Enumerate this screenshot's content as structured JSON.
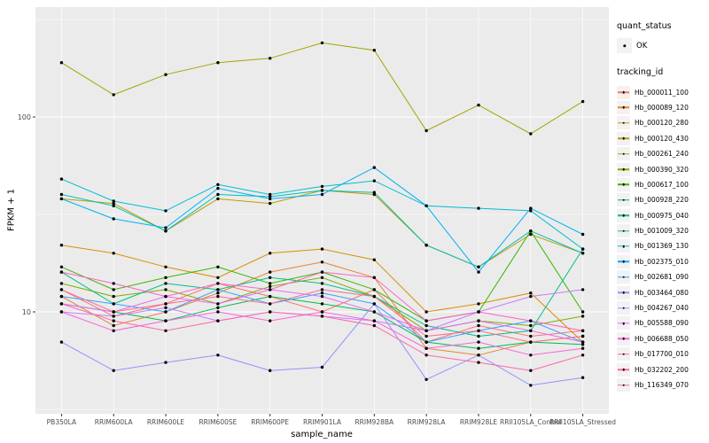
{
  "figure": {
    "background": "#FFFFFF",
    "panel_background": "#EBEBEB",
    "grid_color": "#FFFFFF",
    "tick_color": "#333333",
    "tick_label_color": "#4D4D4D",
    "point_color": "#000000"
  },
  "axes": {
    "x_title": "sample_name",
    "y_title": "FPKM + 1",
    "y_tick_labels": [
      "100",
      "10"
    ],
    "y_tick_values": [
      100,
      10
    ],
    "y_minor_values": [
      3.1623,
      31.623,
      316.23
    ]
  },
  "legend": {
    "quant_status": {
      "title": "quant_status",
      "items": [
        {
          "label": "OK",
          "symbol": "black-point"
        }
      ]
    },
    "tracking_id": {
      "title": "tracking_id"
    }
  },
  "chart_data": {
    "type": "line",
    "title": "",
    "xlabel": "sample_name",
    "ylabel": "FPKM + 1",
    "log_y": true,
    "ylim": [
      3,
      366
    ],
    "y_ticks": [
      10,
      100
    ],
    "grid": true,
    "legend_position": "right",
    "point_marker": "black-dot",
    "categories": [
      "PB350LA",
      "RRIM600LA",
      "RRIM600LE",
      "RRIM600SE",
      "RRIM600PE",
      "RRIM901LA",
      "RRIM928BA",
      "RRIM928LA",
      "RRIM928LE",
      "RRII105LA_Control",
      "RRII105LA_Stressed"
    ],
    "series": [
      {
        "name": "Hb_000011_100",
        "color": "#F8766D",
        "values": [
          13,
          9.5,
          11,
          14,
          12,
          10,
          13,
          7,
          8.5,
          7.5,
          8
        ]
      },
      {
        "name": "Hb_000089_120",
        "color": "#EA8331",
        "values": [
          12,
          8.5,
          10,
          12.5,
          16,
          18,
          15,
          6.5,
          6,
          7,
          7.5
        ]
      },
      {
        "name": "Hb_000120_280",
        "color": "#D89000",
        "values": [
          22,
          20,
          17,
          15,
          20,
          21,
          18.5,
          10,
          11,
          12.5,
          7
        ]
      },
      {
        "name": "Hb_000120_430",
        "color": "#C09B00",
        "values": [
          38,
          36,
          26,
          38,
          36,
          42,
          40,
          22,
          17,
          25,
          20
        ]
      },
      {
        "name": "Hb_000261_240",
        "color": "#A3A500",
        "values": [
          190,
          130,
          165,
          190,
          200,
          240,
          220,
          85,
          115,
          82,
          120
        ]
      },
      {
        "name": "Hb_000390_320",
        "color": "#7CAE00",
        "values": [
          14,
          12,
          13,
          11,
          13.5,
          15,
          12,
          8,
          9,
          8.5,
          9.5
        ]
      },
      {
        "name": "Hb_000617_100",
        "color": "#39B600",
        "values": [
          17,
          13,
          15,
          17,
          14,
          16,
          13,
          9,
          10,
          26,
          10
        ]
      },
      {
        "name": "Hb_000928_220",
        "color": "#00BB4E",
        "values": [
          11,
          10,
          9,
          10.5,
          12,
          11,
          10,
          7,
          6.5,
          7,
          6.8
        ]
      },
      {
        "name": "Hb_000975_040",
        "color": "#00C087",
        "values": [
          16,
          11,
          14,
          13,
          15,
          14,
          12,
          8.5,
          7.5,
          8,
          21
        ]
      },
      {
        "name": "Hb_001009_320",
        "color": "#00C0B3",
        "values": [
          40,
          35,
          26,
          40,
          39,
          42,
          41,
          22,
          17,
          26,
          20
        ]
      },
      {
        "name": "Hb_001369_130",
        "color": "#00BDD2",
        "values": [
          48,
          37,
          33,
          45,
          40,
          44,
          47,
          35,
          34,
          33,
          21
        ]
      },
      {
        "name": "Hb_002375_010",
        "color": "#00B0F6",
        "values": [
          38,
          30,
          27,
          43,
          38,
          40,
          55,
          35,
          16,
          34,
          25
        ]
      },
      {
        "name": "Hb_002681_090",
        "color": "#35A2FF",
        "values": [
          12,
          11,
          10,
          13,
          11,
          12.5,
          11,
          7,
          8,
          9,
          7
        ]
      },
      {
        "name": "Hb_003464_080",
        "color": "#9590FF",
        "values": [
          7,
          5,
          5.5,
          6,
          5,
          5.2,
          11,
          4.5,
          6,
          4.2,
          4.6
        ]
      },
      {
        "name": "Hb_004267_040",
        "color": "#C77CFF",
        "values": [
          10,
          9.5,
          10.5,
          9,
          10,
          9.5,
          9,
          8,
          10,
          12,
          13
        ]
      },
      {
        "name": "Hb_005588_090",
        "color": "#E76BF3",
        "values": [
          11,
          10,
          12,
          11,
          13,
          12,
          10,
          8,
          9,
          8,
          7
        ]
      },
      {
        "name": "Hb_006688_050",
        "color": "#FA62DB",
        "values": [
          10,
          8,
          9,
          10,
          9,
          10,
          9,
          6.5,
          7,
          6,
          6.5
        ]
      },
      {
        "name": "Hb_017700_010",
        "color": "#FF61C7",
        "values": [
          16,
          14,
          12,
          14,
          13,
          16,
          15,
          9,
          10,
          9,
          8
        ]
      },
      {
        "name": "Hb_032202_200",
        "color": "#FF67A8",
        "values": [
          11,
          9,
          8,
          9,
          10,
          9.5,
          8.5,
          6,
          5.5,
          5,
          6
        ]
      },
      {
        "name": "Hb_116349_070",
        "color": "#FF6C91",
        "values": [
          13,
          10,
          11,
          12,
          11,
          13,
          12,
          7.5,
          8,
          7,
          7.5
        ]
      }
    ]
  }
}
